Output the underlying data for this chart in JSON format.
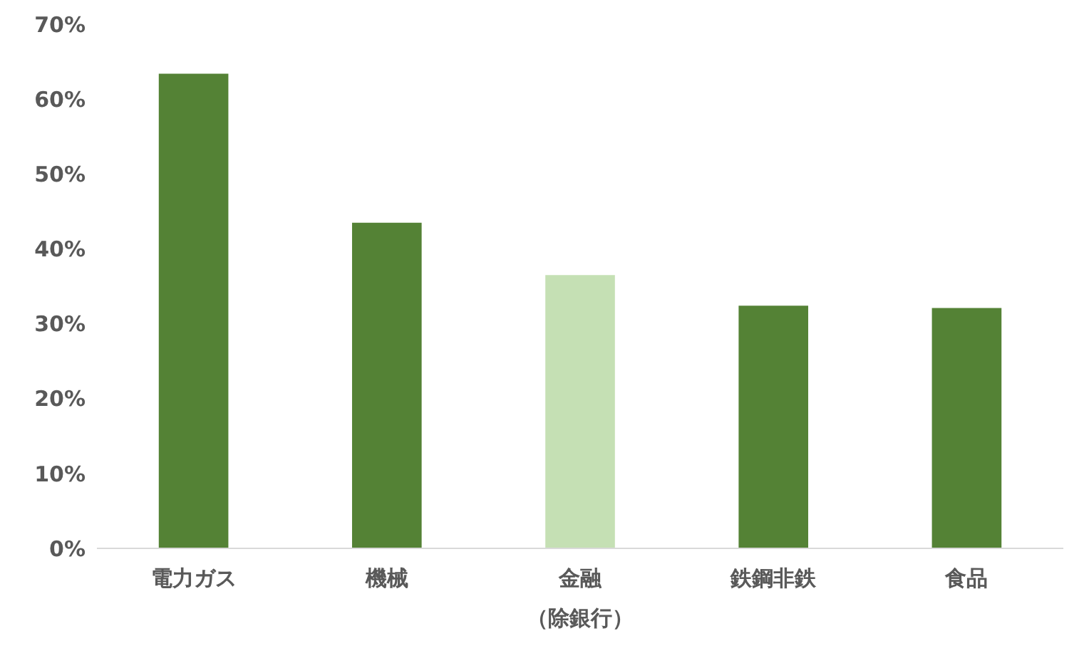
{
  "chart_data": {
    "type": "bar",
    "categories": [
      "電力ガス",
      "機械",
      "金融（除銀行）",
      "鉄鋼非鉄",
      "食品"
    ],
    "values": [
      63.4,
      43.5,
      36.5,
      32.4,
      32.1
    ],
    "colors": [
      "#548235",
      "#548235",
      "#c5e0b4",
      "#548235",
      "#548235"
    ],
    "ylim": [
      0,
      70
    ],
    "yticks": [
      {
        "value": 0,
        "label": "0%"
      },
      {
        "value": 10,
        "label": "10%"
      },
      {
        "value": 20,
        "label": "20%"
      },
      {
        "value": 30,
        "label": "30%"
      },
      {
        "value": 40,
        "label": "40%"
      },
      {
        "value": 50,
        "label": "50%"
      },
      {
        "value": 60,
        "label": "60%"
      },
      {
        "value": 70,
        "label": "70%"
      }
    ],
    "grid": false
  }
}
